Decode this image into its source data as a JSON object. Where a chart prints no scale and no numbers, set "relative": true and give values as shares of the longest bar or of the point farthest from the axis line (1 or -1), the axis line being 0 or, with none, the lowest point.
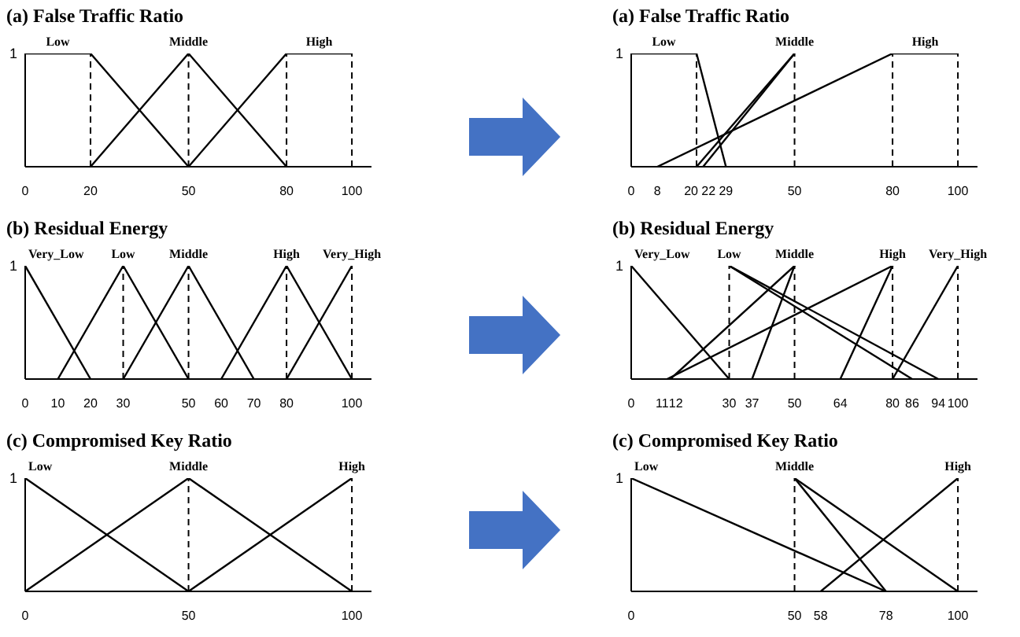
{
  "chart_data": [
    {
      "type": "line",
      "title": "(a) False Traffic Ratio",
      "relative": true,
      "annotations": [
        "1"
      ],
      "xlim": [
        0,
        106
      ],
      "xticks": [
        0,
        20,
        50,
        80,
        100
      ],
      "marker": "none",
      "line_style": "solid",
      "tick_labels": "x",
      "series": [
        {
          "name": "Low",
          "color": "#000000",
          "x": [
            0,
            20,
            50
          ],
          "values": [
            1,
            1,
            0
          ]
        },
        {
          "name": "Middle",
          "color": "#000000",
          "x": [
            20,
            50,
            80
          ],
          "values": [
            0,
            1,
            0
          ]
        },
        {
          "name": "High",
          "color": "#000000",
          "x": [
            50,
            80,
            100
          ],
          "values": [
            0,
            1,
            1
          ]
        }
      ],
      "ref_lines": [
        {
          "axis": "x",
          "value": 20,
          "line_style": "dashed"
        },
        {
          "axis": "x",
          "value": 50,
          "line_style": "dashed"
        },
        {
          "axis": "x",
          "value": 80,
          "line_style": "dashed"
        },
        {
          "axis": "x",
          "value": 100,
          "line_style": "dashed"
        }
      ]
    },
    {
      "type": "line",
      "title": "(a) False Traffic Ratio",
      "relative": true,
      "annotations": [
        "1"
      ],
      "xlim": [
        0,
        106
      ],
      "xticks": [
        0,
        8,
        20,
        22,
        29,
        50,
        80,
        100
      ],
      "marker": "none",
      "line_style": "solid",
      "tick_labels": "x",
      "series": [
        {
          "name": "Low",
          "color": "#000000",
          "x": [
            0,
            20,
            29
          ],
          "values": [
            1,
            1,
            0
          ]
        },
        {
          "name": "Middle",
          "color": "#000000",
          "x": [
            20,
            50
          ],
          "values": [
            0,
            1
          ]
        },
        {
          "color": "#000000",
          "x": [
            22,
            50
          ],
          "values": [
            0,
            1
          ]
        },
        {
          "name": "High",
          "color": "#000000",
          "x": [
            8,
            80,
            100
          ],
          "values": [
            0,
            1,
            1
          ]
        }
      ],
      "ref_lines": [
        {
          "axis": "x",
          "value": 20,
          "line_style": "dashed"
        },
        {
          "axis": "x",
          "value": 50,
          "line_style": "dashed"
        },
        {
          "axis": "x",
          "value": 80,
          "line_style": "dashed"
        },
        {
          "axis": "x",
          "value": 100,
          "line_style": "dashed"
        }
      ]
    },
    {
      "type": "line",
      "title": "(b) Residual  Energy",
      "relative": true,
      "annotations": [
        "1"
      ],
      "xlim": [
        0,
        106
      ],
      "xticks": [
        0,
        10,
        20,
        30,
        50,
        60,
        70,
        80,
        100
      ],
      "marker": "none",
      "line_style": "solid",
      "tick_labels": "x",
      "series": [
        {
          "name": "Very_Low",
          "color": "#000000",
          "x": [
            0,
            20
          ],
          "values": [
            1,
            0
          ]
        },
        {
          "name": "Low",
          "color": "#000000",
          "x": [
            10,
            30,
            50
          ],
          "values": [
            0,
            1,
            0
          ]
        },
        {
          "name": "Middle",
          "color": "#000000",
          "x": [
            30,
            50,
            70
          ],
          "values": [
            0,
            1,
            0
          ]
        },
        {
          "name": "High",
          "color": "#000000",
          "x": [
            60,
            80,
            100
          ],
          "values": [
            0,
            1,
            0
          ]
        },
        {
          "name": "Very_High",
          "color": "#000000",
          "x": [
            80,
            100
          ],
          "values": [
            0,
            1
          ]
        }
      ],
      "ref_lines": [
        {
          "axis": "x",
          "value": 30,
          "line_style": "dashed"
        },
        {
          "axis": "x",
          "value": 50,
          "line_style": "dashed"
        },
        {
          "axis": "x",
          "value": 80,
          "line_style": "dashed"
        },
        {
          "axis": "x",
          "value": 100,
          "line_style": "dashed"
        }
      ]
    },
    {
      "type": "line",
      "title": "(b) Residual  Energy",
      "relative": true,
      "annotations": [
        "1"
      ],
      "xlim": [
        0,
        106
      ],
      "xticks": [
        0,
        11,
        12,
        30,
        37,
        50,
        64,
        80,
        86,
        94,
        100
      ],
      "marker": "none",
      "line_style": "solid",
      "tick_labels": "x",
      "series": [
        {
          "name": "Very_Low",
          "color": "#000000",
          "x": [
            0,
            30
          ],
          "values": [
            1,
            0
          ]
        },
        {
          "name": "Low",
          "color": "#000000",
          "x": [
            30,
            86
          ],
          "values": [
            1,
            0
          ]
        },
        {
          "color": "#000000",
          "x": [
            30,
            94
          ],
          "values": [
            1,
            0
          ]
        },
        {
          "name": "Middle",
          "color": "#000000",
          "x": [
            12,
            50,
            37
          ],
          "values": [
            0,
            1,
            0
          ]
        },
        {
          "name": "High",
          "color": "#000000",
          "x": [
            11,
            80,
            64
          ],
          "values": [
            0,
            1,
            0
          ]
        },
        {
          "name": "Very_High",
          "color": "#000000",
          "x": [
            80,
            100
          ],
          "values": [
            0,
            1
          ]
        }
      ],
      "ref_lines": [
        {
          "axis": "x",
          "value": 30,
          "line_style": "dashed"
        },
        {
          "axis": "x",
          "value": 50,
          "line_style": "dashed"
        },
        {
          "axis": "x",
          "value": 80,
          "line_style": "dashed"
        },
        {
          "axis": "x",
          "value": 100,
          "line_style": "dashed"
        }
      ]
    },
    {
      "type": "line",
      "title": "(c) Compromised  Key Ratio",
      "relative": true,
      "annotations": [
        "1"
      ],
      "xlim": [
        0,
        106
      ],
      "xticks": [
        0,
        50,
        100
      ],
      "marker": "none",
      "line_style": "solid",
      "tick_labels": "x",
      "series": [
        {
          "name": "Low",
          "color": "#000000",
          "x": [
            0,
            50
          ],
          "values": [
            1,
            0
          ]
        },
        {
          "name": "Middle",
          "color": "#000000",
          "x": [
            0,
            50,
            100
          ],
          "values": [
            0,
            1,
            0
          ]
        },
        {
          "name": "High",
          "color": "#000000",
          "x": [
            50,
            100
          ],
          "values": [
            0,
            1
          ]
        }
      ],
      "ref_lines": [
        {
          "axis": "x",
          "value": 50,
          "line_style": "dashed"
        },
        {
          "axis": "x",
          "value": 100,
          "line_style": "dashed"
        }
      ]
    },
    {
      "type": "line",
      "title": "(c) Compromised  Key Ratio",
      "relative": true,
      "annotations": [
        "1"
      ],
      "xlim": [
        0,
        106
      ],
      "xticks": [
        0,
        50,
        58,
        78,
        100
      ],
      "marker": "none",
      "line_style": "solid",
      "tick_labels": "x",
      "series": [
        {
          "name": "Low",
          "color": "#000000",
          "x": [
            0,
            78
          ],
          "values": [
            1,
            0
          ]
        },
        {
          "name": "Middle",
          "color": "#000000",
          "x": [
            50,
            78
          ],
          "values": [
            1,
            0
          ]
        },
        {
          "color": "#000000",
          "x": [
            50,
            100
          ],
          "values": [
            1,
            0
          ]
        },
        {
          "name": "High",
          "color": "#000000",
          "x": [
            58,
            100
          ],
          "values": [
            0,
            1
          ]
        }
      ],
      "ref_lines": [
        {
          "axis": "x",
          "value": 50,
          "line_style": "dashed"
        },
        {
          "axis": "x",
          "value": 100,
          "line_style": "dashed"
        }
      ]
    }
  ]
}
